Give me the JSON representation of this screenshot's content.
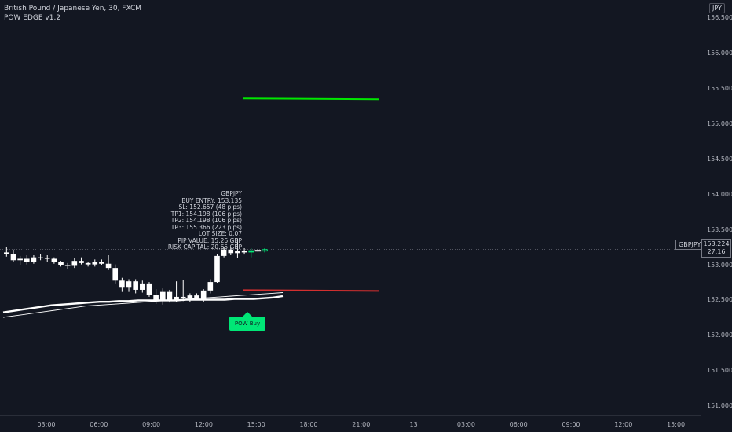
{
  "header": {
    "symbol_title": "British Pound / Japanese Yen, 30, FXCM",
    "indicator_name": "POW EDGE v1.2"
  },
  "price_scale": {
    "currency": "JPY",
    "symbol_tag": "GBPJPY",
    "last_price": "153.224",
    "countdown": "27:16"
  },
  "trade_info": {
    "lines": [
      "GBPJPY",
      "BUY ENTRY: 153.135",
      "SL: 152.657 (48 pips)",
      "TP1: 154.198 (106 pips)",
      "TP2: 154.198 (106 pips)",
      "TP3: 155.366 (223 pips)",
      "LOT SIZE: 0.07",
      "PIP VALUE: 15.26 GBP",
      "RISK CAPITAL: 20.65 GBP"
    ]
  },
  "signal": {
    "label": "POW Buy"
  },
  "chart_data": {
    "type": "candlestick",
    "symbol": "GBPJPY",
    "interval": "30",
    "ylim": [
      150.9,
      156.65
    ],
    "y_ticks": [
      "156.500",
      "156.000",
      "155.500",
      "155.000",
      "154.500",
      "154.000",
      "153.500",
      "153.000",
      "152.500",
      "152.000",
      "151.500",
      "151.000"
    ],
    "x_ticks": [
      "03:00",
      "06:00",
      "09:00",
      "12:00",
      "15:00",
      "18:00",
      "21:00",
      "13",
      "03:00",
      "06:00",
      "09:00",
      "12:00",
      "15:00"
    ],
    "candles": [
      {
        "o": 153.18,
        "h": 153.26,
        "l": 153.12,
        "c": 153.16
      },
      {
        "o": 153.16,
        "h": 153.22,
        "l": 153.05,
        "c": 153.07
      },
      {
        "o": 153.07,
        "h": 153.13,
        "l": 153.0,
        "c": 153.09
      },
      {
        "o": 153.09,
        "h": 153.14,
        "l": 153.01,
        "c": 153.04
      },
      {
        "o": 153.04,
        "h": 153.14,
        "l": 153.02,
        "c": 153.11
      },
      {
        "o": 153.11,
        "h": 153.16,
        "l": 153.07,
        "c": 153.1
      },
      {
        "o": 153.1,
        "h": 153.14,
        "l": 153.05,
        "c": 153.09
      },
      {
        "o": 153.09,
        "h": 153.11,
        "l": 153.02,
        "c": 153.04
      },
      {
        "o": 153.04,
        "h": 153.06,
        "l": 152.98,
        "c": 153.0
      },
      {
        "o": 153.0,
        "h": 153.03,
        "l": 152.95,
        "c": 152.99
      },
      {
        "o": 152.99,
        "h": 153.1,
        "l": 152.96,
        "c": 153.06
      },
      {
        "o": 153.06,
        "h": 153.11,
        "l": 153.01,
        "c": 153.03
      },
      {
        "o": 153.03,
        "h": 153.05,
        "l": 152.98,
        "c": 153.01
      },
      {
        "o": 153.01,
        "h": 153.08,
        "l": 152.98,
        "c": 153.05
      },
      {
        "o": 153.05,
        "h": 153.08,
        "l": 153.0,
        "c": 153.02
      },
      {
        "o": 153.02,
        "h": 153.14,
        "l": 152.93,
        "c": 152.96
      },
      {
        "o": 152.96,
        "h": 153.01,
        "l": 152.74,
        "c": 152.78
      },
      {
        "o": 152.78,
        "h": 152.82,
        "l": 152.62,
        "c": 152.68
      },
      {
        "o": 152.68,
        "h": 152.8,
        "l": 152.62,
        "c": 152.77
      },
      {
        "o": 152.77,
        "h": 152.8,
        "l": 152.6,
        "c": 152.65
      },
      {
        "o": 152.65,
        "h": 152.78,
        "l": 152.61,
        "c": 152.74
      },
      {
        "o": 152.74,
        "h": 152.76,
        "l": 152.55,
        "c": 152.58
      },
      {
        "o": 152.58,
        "h": 152.66,
        "l": 152.45,
        "c": 152.5
      },
      {
        "o": 152.5,
        "h": 152.67,
        "l": 152.44,
        "c": 152.62
      },
      {
        "o": 152.62,
        "h": 152.65,
        "l": 152.47,
        "c": 152.5
      },
      {
        "o": 152.5,
        "h": 152.77,
        "l": 152.48,
        "c": 152.55
      },
      {
        "o": 152.55,
        "h": 152.79,
        "l": 152.49,
        "c": 152.53
      },
      {
        "o": 152.53,
        "h": 152.6,
        "l": 152.48,
        "c": 152.57
      },
      {
        "o": 152.57,
        "h": 152.6,
        "l": 152.5,
        "c": 152.52
      },
      {
        "o": 152.52,
        "h": 152.66,
        "l": 152.48,
        "c": 152.64
      },
      {
        "o": 152.64,
        "h": 152.8,
        "l": 152.6,
        "c": 152.76
      },
      {
        "o": 152.76,
        "h": 153.16,
        "l": 152.75,
        "c": 153.13
      },
      {
        "o": 153.13,
        "h": 153.26,
        "l": 153.11,
        "c": 153.22
      },
      {
        "o": 153.22,
        "h": 153.26,
        "l": 153.14,
        "c": 153.17
      },
      {
        "o": 153.17,
        "h": 153.38,
        "l": 153.1,
        "c": 153.2
      },
      {
        "o": 153.2,
        "h": 153.24,
        "l": 153.15,
        "c": 153.18
      },
      {
        "o": 153.18,
        "h": 153.24,
        "l": 153.11,
        "c": 153.21
      },
      {
        "o": 153.21,
        "h": 153.23,
        "l": 153.19,
        "c": 153.2
      },
      {
        "o": 153.2,
        "h": 153.24,
        "l": 153.18,
        "c": 153.22
      }
    ],
    "levels": {
      "take_profit": 155.366,
      "stop_loss": 152.657,
      "last_price": 153.224
    },
    "moving_averages": [
      [
        152.33,
        152.35,
        152.37,
        152.39,
        152.41,
        152.43,
        152.44,
        152.45,
        152.46,
        152.47,
        152.48,
        152.48,
        152.49,
        152.49,
        152.5,
        152.5,
        152.5,
        152.5,
        152.5,
        152.51,
        152.51,
        152.51,
        152.51,
        152.51,
        152.52,
        152.52,
        152.52,
        152.53,
        152.54,
        152.56
      ],
      [
        152.26,
        152.28,
        152.3,
        152.32,
        152.34,
        152.36,
        152.38,
        152.4,
        152.42,
        152.43,
        152.44,
        152.45,
        152.46,
        152.47,
        152.48,
        152.49,
        152.5,
        152.51,
        152.52,
        152.53,
        152.54,
        152.55,
        152.56,
        152.57,
        152.58,
        152.59,
        152.6,
        152.61
      ]
    ],
    "colors": {
      "bull_highlight": "#00e676",
      "take_profit": "#00e600",
      "stop_loss": "#d32f2f",
      "candle": "#ffffff",
      "background": "#131722",
      "signal": "#00e676"
    }
  }
}
